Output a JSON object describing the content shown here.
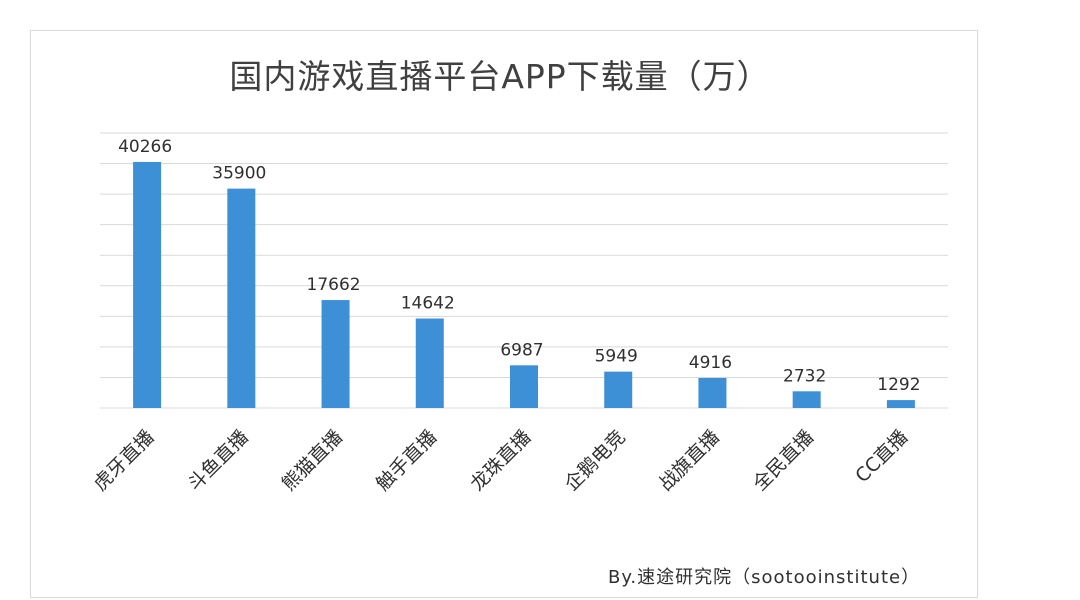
{
  "chart_data": {
    "type": "bar",
    "title": "国内游戏直播平台APP下载量（万）",
    "categories": [
      "虎牙直播",
      "斗鱼直播",
      "熊猫直播",
      "触手直播",
      "龙珠直播",
      "企鹅电竞",
      "战旗直播",
      "全民直播",
      "CC直播"
    ],
    "values": [
      40266,
      35900,
      17662,
      14642,
      6987,
      5949,
      4916,
      2732,
      1292
    ],
    "data_labels": [
      "40266",
      "35900",
      "17662",
      "14642",
      "6987",
      "5949",
      "4916",
      "2732",
      "1292"
    ],
    "ylim": [
      0,
      45000
    ],
    "grid": true,
    "legend": "none",
    "bar_color": "#3d8fd6",
    "grid_color": "#d9d9d9"
  },
  "credit": "By.速途研究院（sootooinstitute）"
}
